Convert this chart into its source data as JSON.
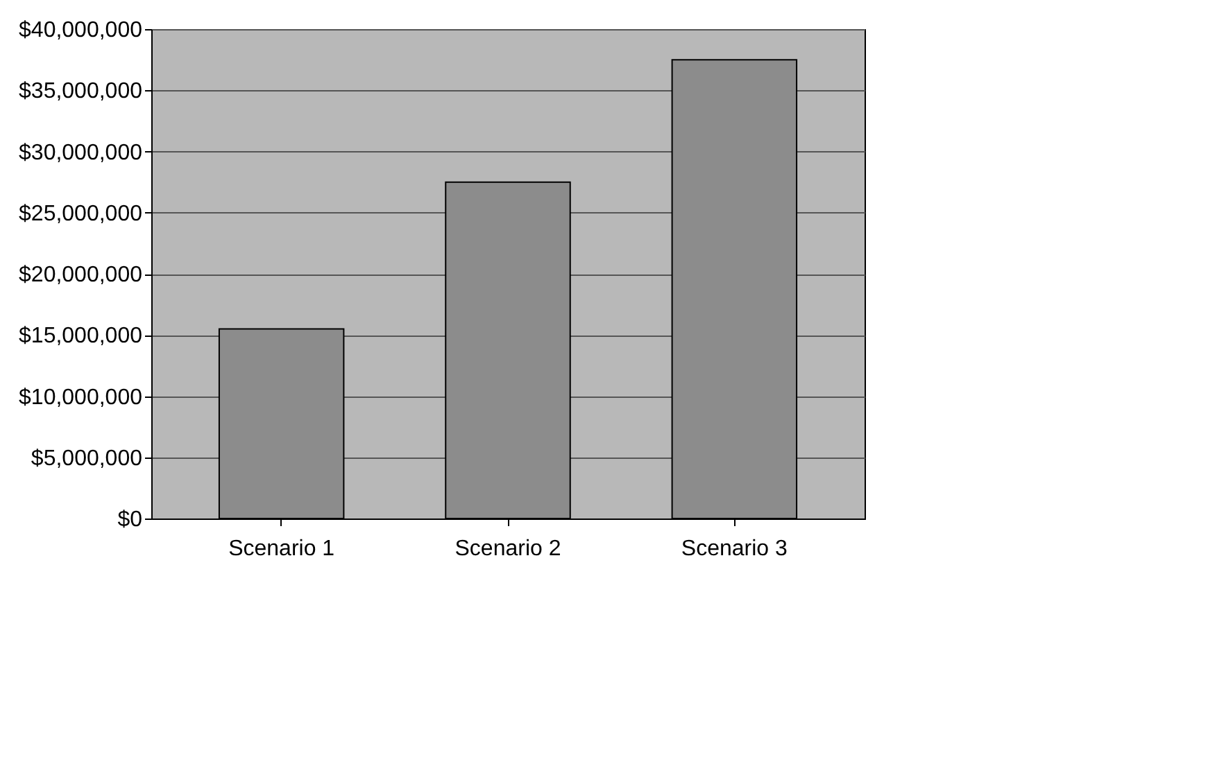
{
  "chart_data": {
    "type": "bar",
    "categories": [
      "Scenario 1",
      "Scenario 2",
      "Scenario 3"
    ],
    "values": [
      15500000,
      27500000,
      37500000
    ],
    "color": "#8c8c8c",
    "ylim": [
      0,
      40000000
    ],
    "yticks": [
      {
        "value": 0,
        "label": "$0"
      },
      {
        "value": 5000000,
        "label": "$5,000,000"
      },
      {
        "value": 10000000,
        "label": "$10,000,000"
      },
      {
        "value": 15000000,
        "label": "$15,000,000"
      },
      {
        "value": 20000000,
        "label": "$20,000,000"
      },
      {
        "value": 25000000,
        "label": "$25,000,000"
      },
      {
        "value": 30000000,
        "label": "$30,000,000"
      },
      {
        "value": 35000000,
        "label": "$35,000,000"
      },
      {
        "value": 40000000,
        "label": "$40,000,000"
      }
    ],
    "grid": "y"
  }
}
